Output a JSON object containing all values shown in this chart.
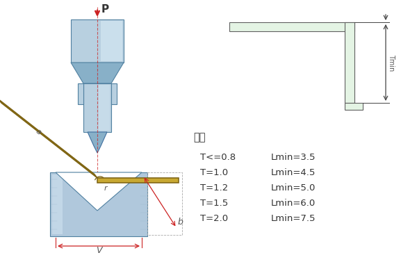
{
  "bg_color": "#ffffff",
  "table_header": "料厚",
  "table_rows": [
    [
      "T<=0.8",
      "Lmin=3.5"
    ],
    [
      "T=1.0",
      "Lmin=4.5"
    ],
    [
      "T=1.2",
      "Lmin=5.0"
    ],
    [
      "T=1.5",
      "Lmin=6.0"
    ],
    [
      "T=2.0",
      "Lmin=7.5"
    ]
  ],
  "punch_light": "#b8d0e0",
  "punch_mid": "#88b0c8",
  "punch_dark": "#5888a8",
  "punch_white": "#ddeef8",
  "die_light": "#b0c8dc",
  "die_mid": "#80a8c0",
  "die_white": "#d8eaf5",
  "sheet_fill": "#c8a832",
  "sheet_edge": "#7a6010",
  "dim_color": "#cc2222",
  "section_fill": "#e4f4e4",
  "section_edge": "#606060",
  "text_dark": "#333333",
  "text_dim": "#555555"
}
